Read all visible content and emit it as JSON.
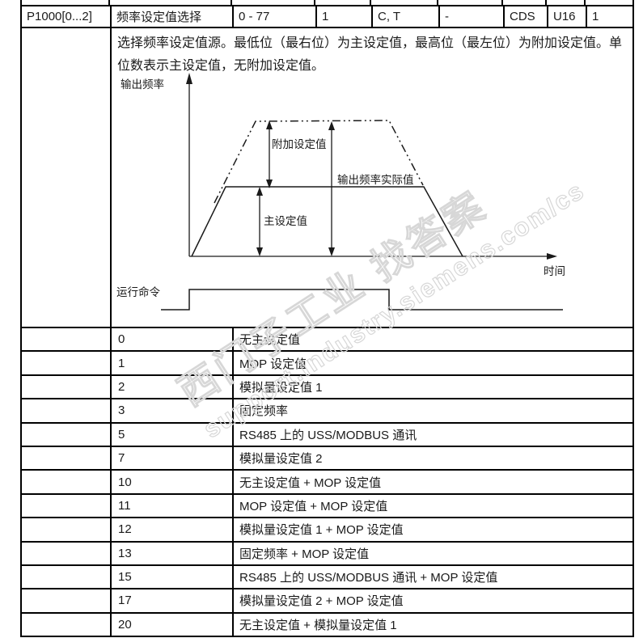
{
  "param_row": {
    "cells": [
      "P1000[0...2]",
      "频率设定值选择",
      "0 - 77",
      "1",
      "C, T",
      "-",
      "CDS",
      "U16",
      "1"
    ]
  },
  "description": "选择频率设定值源。最低位（最右位）为主设定值，最高位（最左位）为附加设定值。单位数表示主设定值，无附加设定值。",
  "diagram": {
    "y_axis_label": "输出频率",
    "x_axis_label": "时间",
    "additional_setpoint_label": "附加设定值",
    "actual_output_label": "输出频率实际值",
    "main_setpoint_label": "主设定值",
    "run_command_label": "运行命令"
  },
  "values": [
    {
      "value": "0",
      "desc": "无主设定值"
    },
    {
      "value": "1",
      "desc": "MOP 设定值"
    },
    {
      "value": "2",
      "desc": "模拟量设定值 1"
    },
    {
      "value": "3",
      "desc": "固定频率"
    },
    {
      "value": "5",
      "desc": "RS485 上的 USS/MODBUS 通讯"
    },
    {
      "value": "7",
      "desc": "模拟量设定值 2"
    },
    {
      "value": "10",
      "desc": "无主设定值 + MOP 设定值"
    },
    {
      "value": "11",
      "desc": "MOP 设定值 + MOP 设定值"
    },
    {
      "value": "12",
      "desc": "模拟量设定值 1 + MOP 设定值"
    },
    {
      "value": "13",
      "desc": "固定频率 + MOP 设定值"
    },
    {
      "value": "15",
      "desc": "RS485 上的 USS/MODBUS 通讯 +  MOP 设定值"
    },
    {
      "value": "17",
      "desc": "模拟量设定值 2 + MOP 设定值"
    },
    {
      "value": "20",
      "desc": "无主设定值 + 模拟量设定值 1"
    }
  ],
  "watermark": {
    "line1": "西门子工业 找答案",
    "line2": "support.industry.siemens.com/cs",
    "color": "#d7d7d7"
  },
  "colors": {
    "border": "#000000",
    "text": "#1a1a1a",
    "diagram_line": "#1a1a1a"
  }
}
